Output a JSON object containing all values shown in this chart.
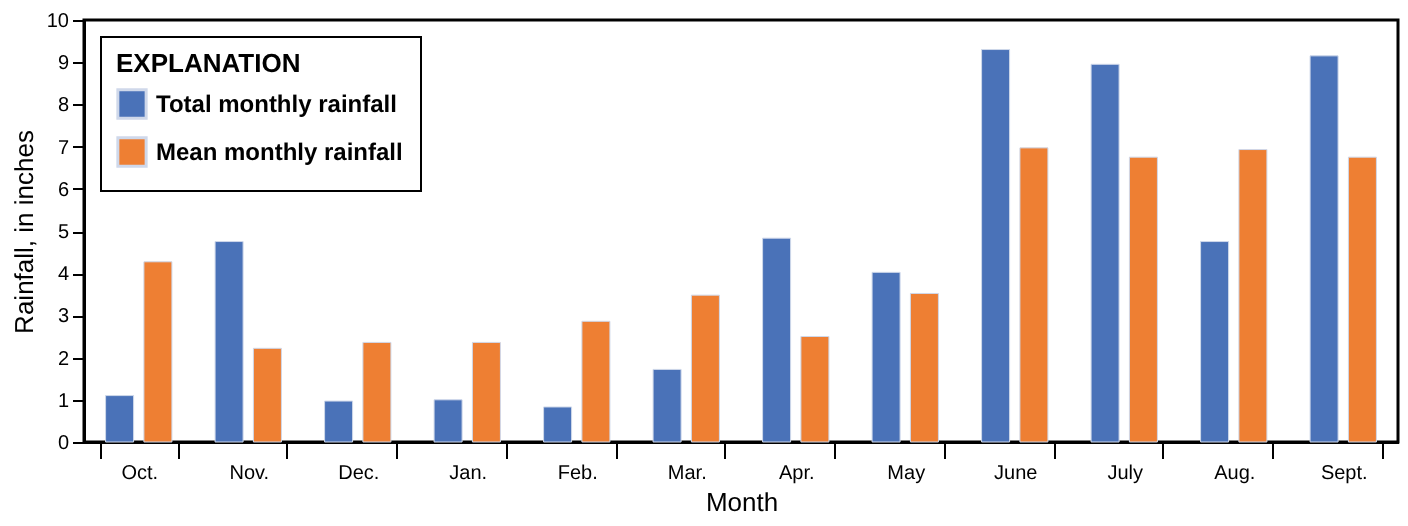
{
  "chart_data": {
    "type": "bar",
    "xlabel": "Month",
    "ylabel": "Rainfall, in inches",
    "legend_title": "EXPLANATION",
    "legend": "top left",
    "grid": false,
    "categories": [
      "Oct.",
      "Nov.",
      "Dec.",
      "Jan.",
      "Feb.",
      "Mar.",
      "Apr.",
      "May",
      "June",
      "July",
      "Aug.",
      "Sept."
    ],
    "ylim": [
      0,
      10
    ],
    "yticks": [
      0,
      1,
      2,
      3,
      4,
      5,
      6,
      7,
      8,
      9,
      10
    ],
    "series": [
      {
        "name": "Total monthly rainfall",
        "color": "#4a72b8",
        "values": [
          1.1,
          4.75,
          0.97,
          1.0,
          0.83,
          1.72,
          4.83,
          4.02,
          9.3,
          8.95,
          4.75,
          9.15
        ]
      },
      {
        "name": "Mean monthly rainfall",
        "color": "#ee7f33",
        "values": [
          4.27,
          2.22,
          2.36,
          2.36,
          2.86,
          3.48,
          2.5,
          3.52,
          6.97,
          6.75,
          6.93,
          6.75
        ]
      }
    ]
  }
}
